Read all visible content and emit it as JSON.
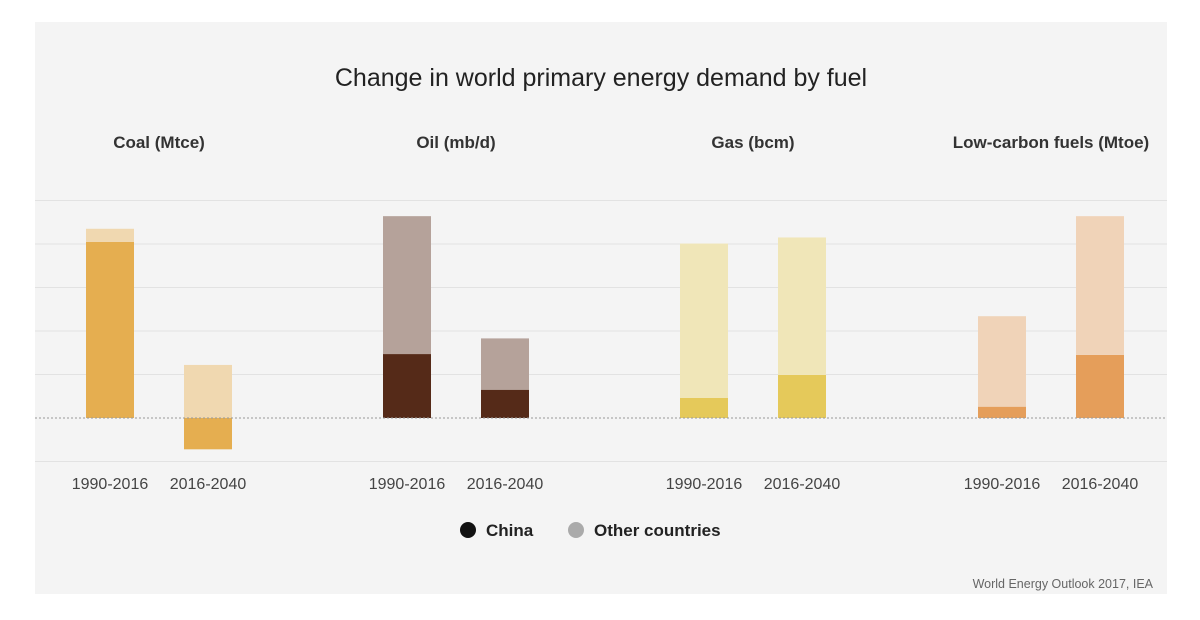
{
  "chart_data": {
    "type": "bar",
    "stacked": true,
    "title": "Change in world primary energy demand by fuel",
    "source": "World Energy Outlook 2017, IEA",
    "categories": [
      "1990-2016",
      "2016-2040"
    ],
    "ylim": [
      -1.0,
      5.0
    ],
    "yaxis_labels": false,
    "grid": true,
    "legend": {
      "position": "bottom-center",
      "entries": [
        {
          "name": "China",
          "color": "#111111"
        },
        {
          "name": "Other countries",
          "color": "#aaaaaa"
        }
      ]
    },
    "facets": [
      {
        "title": "Coal (Mtce)",
        "colors": {
          "China": "#e5ae50",
          "Other countries": "#f0d8b0"
        },
        "series": [
          {
            "name": "China",
            "values": [
              4.05,
              -0.72
            ]
          },
          {
            "name": "Other countries",
            "values": [
              0.3,
              1.22
            ]
          }
        ]
      },
      {
        "title": "Oil (mb/d)",
        "colors": {
          "China": "#552a18",
          "Other countries": "#b5a29a"
        },
        "series": [
          {
            "name": "China",
            "values": [
              1.47,
              0.65
            ]
          },
          {
            "name": "Other countries",
            "values": [
              3.17,
              1.18
            ]
          }
        ]
      },
      {
        "title": "Gas (bcm)",
        "colors": {
          "China": "#e5c95a",
          "Other countries": "#f0e6b8"
        },
        "series": [
          {
            "name": "China",
            "values": [
              0.46,
              0.99
            ]
          },
          {
            "name": "Other countries",
            "values": [
              3.55,
              3.16
            ]
          }
        ]
      },
      {
        "title": "Low-carbon fuels (Mtoe)",
        "colors": {
          "China": "#e59e5a",
          "Other countries": "#f0d3b8"
        },
        "series": [
          {
            "name": "China",
            "values": [
              0.26,
              1.45
            ]
          },
          {
            "name": "Other countries",
            "values": [
              2.08,
              3.19
            ]
          }
        ]
      }
    ]
  }
}
